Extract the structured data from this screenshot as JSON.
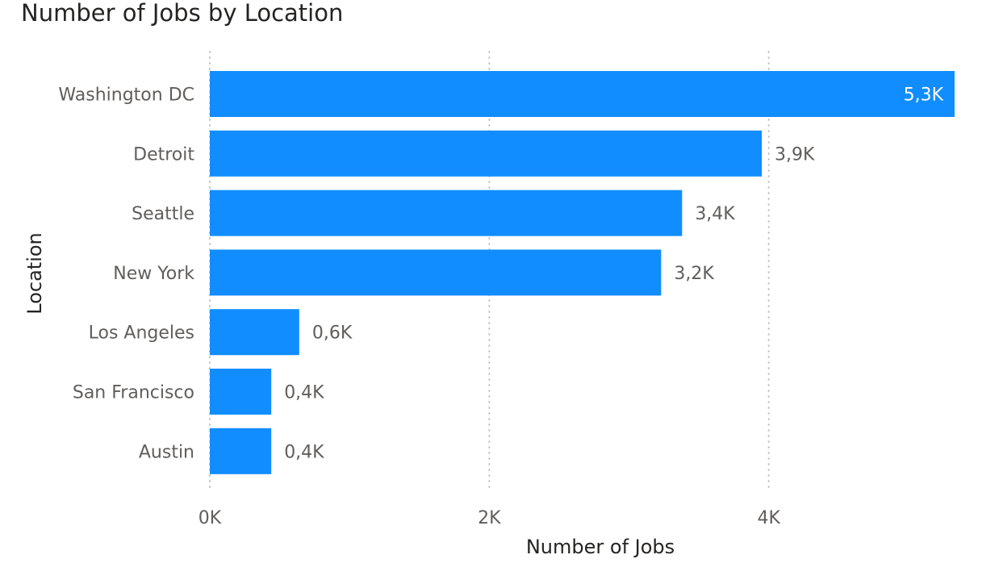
{
  "chart_data": {
    "type": "bar",
    "orientation": "horizontal",
    "title": "Number of Jobs by Location",
    "xlabel": "Number of Jobs",
    "ylabel": "Location",
    "categories": [
      "Washington DC",
      "Detroit",
      "Seattle",
      "New York",
      "Los Angeles",
      "San Francisco",
      "Austin"
    ],
    "values": [
      5330,
      3950,
      3380,
      3230,
      640,
      440,
      440
    ],
    "data_labels": [
      "5,3K",
      "3,9K",
      "3,4K",
      "3,2K",
      "0,6K",
      "0,4K",
      "0,4K"
    ],
    "x_ticks": [
      {
        "value": 0,
        "label": "0K"
      },
      {
        "value": 2000,
        "label": "2K"
      },
      {
        "value": 4000,
        "label": "4K"
      }
    ],
    "xlim": [
      0,
      5330
    ],
    "grid": "vertical dotted",
    "legend": "none",
    "bar_color": "#118dff",
    "label_color": "#605e5c",
    "title_color": "#252423",
    "grid_color": "#c8c6c4",
    "inside_label_color": "#ffffff"
  }
}
